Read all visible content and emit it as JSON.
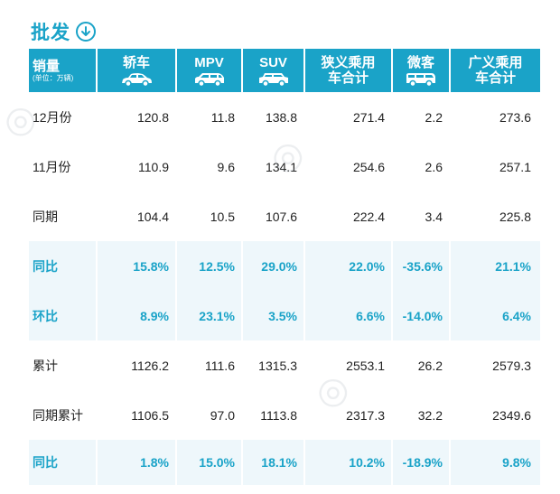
{
  "page": {
    "title": "批发",
    "title_icon": "arrow-down-circle-icon",
    "accent_color": "#1aa3c8",
    "highlight_bg": "#eef7fb"
  },
  "table": {
    "header": {
      "label": "销量",
      "unit": "(单位：万辆)",
      "columns": [
        {
          "label": "轿车",
          "icon": "sedan-icon"
        },
        {
          "label": "MPV",
          "icon": "mpv-icon"
        },
        {
          "label": "SUV",
          "icon": "suv-icon"
        },
        {
          "label": "狭义乘用车合计"
        },
        {
          "label": "微客",
          "icon": "minivan-icon"
        },
        {
          "label": "广义乘用车合计"
        }
      ]
    },
    "rows": [
      {
        "label": "12月份",
        "values": [
          "120.8",
          "11.8",
          "138.8",
          "271.4",
          "2.2",
          "273.6"
        ],
        "highlight": false
      },
      {
        "label": "11月份",
        "values": [
          "110.9",
          "9.6",
          "134.1",
          "254.6",
          "2.6",
          "257.1"
        ],
        "highlight": false
      },
      {
        "label": "同期",
        "values": [
          "104.4",
          "10.5",
          "107.6",
          "222.4",
          "3.4",
          "225.8"
        ],
        "highlight": false
      },
      {
        "label": "同比",
        "values": [
          "15.8%",
          "12.5%",
          "29.0%",
          "22.0%",
          "-35.6%",
          "21.1%"
        ],
        "highlight": true
      },
      {
        "label": "环比",
        "values": [
          "8.9%",
          "23.1%",
          "3.5%",
          "6.6%",
          "-14.0%",
          "6.4%"
        ],
        "highlight": true
      },
      {
        "label": "累计",
        "values": [
          "1126.2",
          "111.6",
          "1315.3",
          "2553.1",
          "26.2",
          "2579.3"
        ],
        "highlight": false
      },
      {
        "label": "同期累计",
        "values": [
          "1106.5",
          "97.0",
          "1113.8",
          "2317.3",
          "32.2",
          "2349.6"
        ],
        "highlight": false
      },
      {
        "label": "同比",
        "values": [
          "1.8%",
          "15.0%",
          "18.1%",
          "10.2%",
          "-18.9%",
          "9.8%"
        ],
        "highlight": true
      }
    ]
  }
}
